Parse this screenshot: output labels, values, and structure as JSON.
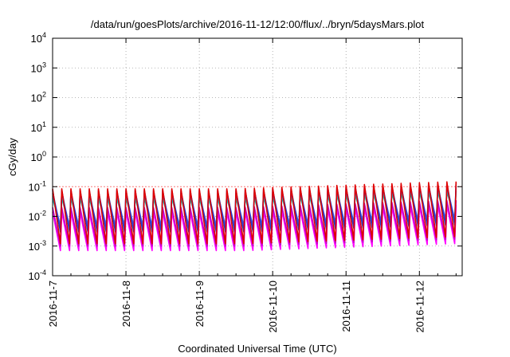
{
  "chart_data": {
    "type": "line",
    "title": "/data/run/goesPlots/archive/2016-11-12/12:00/flux/../bryn/5daysMars.plot",
    "xlabel": "Coordinated Universal Time (UTC)",
    "ylabel": "cGy/day",
    "yscale": "log",
    "ylim": [
      0.0001,
      10000
    ],
    "xlim": [
      "2016-11-07",
      "2016-11-12 14:00"
    ],
    "grid": true,
    "y_ticks": [
      {
        "base": "10",
        "exp": "-4"
      },
      {
        "base": "10",
        "exp": "-3"
      },
      {
        "base": "10",
        "exp": "-2"
      },
      {
        "base": "10",
        "exp": "-1"
      },
      {
        "base": "10",
        "exp": "0"
      },
      {
        "base": "10",
        "exp": "1"
      },
      {
        "base": "10",
        "exp": "2"
      },
      {
        "base": "10",
        "exp": "3"
      },
      {
        "base": "10",
        "exp": "4"
      }
    ],
    "x_ticks": [
      "2016-11-7",
      "2016-11-8",
      "2016-11-9",
      "2016-11-10",
      "2016-11-11",
      "2016-11-12"
    ],
    "reference_line": {
      "value": 0.1,
      "color": "#ff8080"
    },
    "cycle_hours": 3,
    "series": [
      {
        "color": "#e00000",
        "peak": 0.085,
        "trough": 0.0012,
        "trend": 0.25
      },
      {
        "color": "#1e3cc8",
        "peak": 0.075,
        "trough": 0.003,
        "trend": 0.25
      },
      {
        "color": "#5050e6",
        "peak": 0.06,
        "trough": 0.0045,
        "trend": 0.25
      },
      {
        "color": "#00c8c8",
        "peak": 0.04,
        "trough": 0.005,
        "trend": 0.25
      },
      {
        "color": "#c000c0",
        "peak": 0.02,
        "trough": 0.001,
        "trend": 0.25
      },
      {
        "color": "#ff00ff",
        "peak": 0.014,
        "trough": 0.0007,
        "trend": 0.25
      }
    ]
  }
}
